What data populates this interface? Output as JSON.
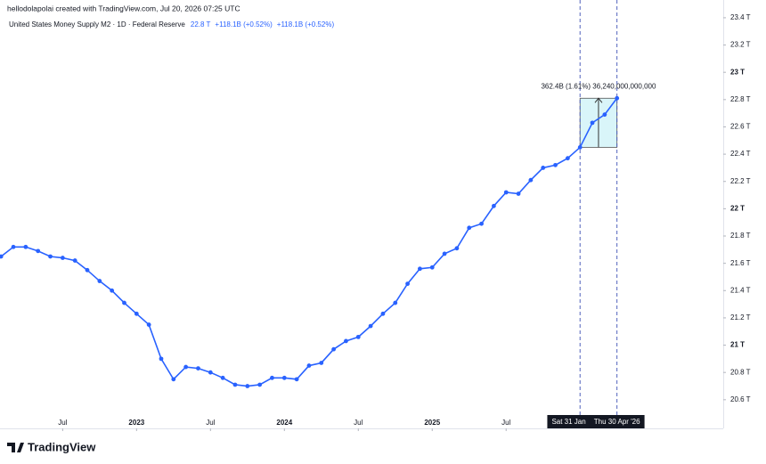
{
  "header": "hellodolapolai created with TradingView.com, Jul 20, 2026 07:25 UTC",
  "brand": "TradingView",
  "chart_data": {
    "type": "line",
    "title": "United States Money Supply M2 · 1D · Federal Reserve",
    "legend_values": [
      "22.8 T",
      "+118.1B (+0.52%)",
      "+118.1B (+0.52%)"
    ],
    "x": [
      "2022-02",
      "2022-03",
      "2022-04",
      "2022-05",
      "2022-06",
      "2022-07",
      "2022-08",
      "2022-09",
      "2022-10",
      "2022-11",
      "2022-12",
      "2023-01",
      "2023-02",
      "2023-03",
      "2023-04",
      "2023-05",
      "2023-06",
      "2023-07",
      "2023-08",
      "2023-09",
      "2023-10",
      "2023-11",
      "2023-12",
      "2024-01",
      "2024-02",
      "2024-03",
      "2024-04",
      "2024-05",
      "2024-06",
      "2024-07",
      "2024-08",
      "2024-09",
      "2024-10",
      "2024-11",
      "2024-12",
      "2025-01",
      "2025-02",
      "2025-03",
      "2025-04",
      "2025-05",
      "2025-06",
      "2025-07",
      "2025-08",
      "2025-09",
      "2025-10",
      "2025-11",
      "2025-12",
      "2026-01",
      "2026-02",
      "2026-03",
      "2026-04"
    ],
    "series": [
      {
        "name": "United States Money Supply M2",
        "color": "#2962ff",
        "values": [
          21.65,
          21.72,
          21.72,
          21.69,
          21.65,
          21.64,
          21.62,
          21.55,
          21.47,
          21.4,
          21.31,
          21.23,
          21.15,
          20.9,
          20.75,
          20.84,
          20.83,
          20.8,
          20.76,
          20.71,
          20.7,
          20.71,
          20.76,
          20.76,
          20.75,
          20.85,
          20.87,
          20.97,
          21.03,
          21.06,
          21.14,
          21.23,
          21.31,
          21.45,
          21.56,
          21.57,
          21.67,
          21.71,
          21.86,
          21.89,
          22.02,
          22.12,
          22.11,
          22.21,
          22.3,
          22.32,
          22.37,
          22.45,
          22.63,
          22.69,
          22.81
        ]
      }
    ],
    "ylim": [
      20.39,
      23.53
    ],
    "yticks": [
      {
        "value": 20.6,
        "label": "20.6 T"
      },
      {
        "value": 20.8,
        "label": "20.8 T"
      },
      {
        "value": 21,
        "label": "21 T"
      },
      {
        "value": 21.2,
        "label": "21.2 T"
      },
      {
        "value": 21.4,
        "label": "21.4 T"
      },
      {
        "value": 21.6,
        "label": "21.6 T"
      },
      {
        "value": 21.8,
        "label": "21.8 T"
      },
      {
        "value": 22,
        "label": "22 T"
      },
      {
        "value": 22.2,
        "label": "22.2 T"
      },
      {
        "value": 22.4,
        "label": "22.4 T"
      },
      {
        "value": 22.6,
        "label": "22.6 T"
      },
      {
        "value": 22.8,
        "label": "22.8 T"
      },
      {
        "value": 23,
        "label": "23 T"
      },
      {
        "value": 23.2,
        "label": "23.2 T"
      },
      {
        "value": 23.4,
        "label": "23.4 T"
      }
    ],
    "xticks": [
      {
        "value": "2022-07",
        "label": "Jul"
      },
      {
        "value": "2023-01",
        "label": "2023"
      },
      {
        "value": "2023-07",
        "label": "Jul"
      },
      {
        "value": "2024-01",
        "label": "2024"
      },
      {
        "value": "2024-07",
        "label": "Jul"
      },
      {
        "value": "2025-01",
        "label": "2025"
      },
      {
        "value": "2025-07",
        "label": "Jul"
      }
    ],
    "grid": false,
    "annotations": {
      "measure": "362.4B (1.61%) 36,240,000,000,000",
      "start_date": "Sat 31 Jan",
      "end_date": "Thu 30 Apr '26"
    }
  }
}
